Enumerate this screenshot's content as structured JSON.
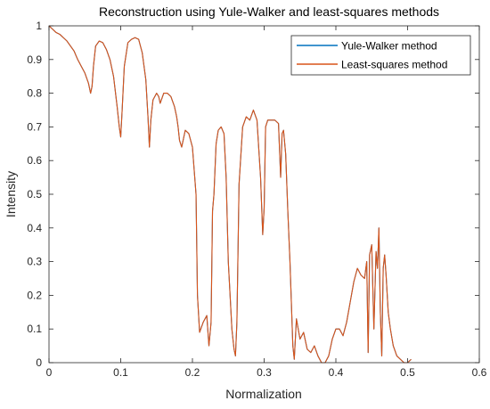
{
  "chart_data": {
    "type": "line",
    "title": "Reconstruction using Yule-Walker and least-squares methods",
    "xlabel": "Normalization",
    "ylabel": "Intensity",
    "xlim": [
      0,
      0.6
    ],
    "ylim": [
      0,
      1
    ],
    "xticks": [
      "0",
      "0.1",
      "0.2",
      "0.3",
      "0.4",
      "0.5",
      "0.6"
    ],
    "yticks": [
      "0",
      "0.1",
      "0.2",
      "0.3",
      "0.4",
      "0.5",
      "0.6",
      "0.7",
      "0.8",
      "0.9",
      "1"
    ],
    "grid": false,
    "legend_position": "top-right",
    "series": [
      {
        "name": "Yule-Walker method",
        "color": "#0072BD",
        "x": [
          0,
          0.005,
          0.01,
          0.015,
          0.02,
          0.025,
          0.03,
          0.035,
          0.04,
          0.045,
          0.05,
          0.055,
          0.058,
          0.06,
          0.062,
          0.065,
          0.07,
          0.075,
          0.08,
          0.085,
          0.09,
          0.095,
          0.098,
          0.1,
          0.102,
          0.105,
          0.11,
          0.115,
          0.12,
          0.125,
          0.13,
          0.135,
          0.138,
          0.14,
          0.142,
          0.145,
          0.15,
          0.153,
          0.155,
          0.16,
          0.165,
          0.17,
          0.175,
          0.178,
          0.18,
          0.182,
          0.185,
          0.19,
          0.195,
          0.2,
          0.205,
          0.207,
          0.21,
          0.215,
          0.22,
          0.223,
          0.226,
          0.228,
          0.23,
          0.233,
          0.236,
          0.24,
          0.244,
          0.247,
          0.25,
          0.255,
          0.258,
          0.26,
          0.262,
          0.265,
          0.27,
          0.275,
          0.28,
          0.285,
          0.29,
          0.295,
          0.298,
          0.3,
          0.302,
          0.305,
          0.31,
          0.315,
          0.32,
          0.323,
          0.325,
          0.327,
          0.33,
          0.333,
          0.336,
          0.34,
          0.342,
          0.345,
          0.35,
          0.355,
          0.36,
          0.365,
          0.37,
          0.375,
          0.38,
          0.385,
          0.39,
          0.395,
          0.4,
          0.405,
          0.41,
          0.415,
          0.42,
          0.425,
          0.43,
          0.435,
          0.44,
          0.443,
          0.445,
          0.447,
          0.45,
          0.453,
          0.456,
          0.458,
          0.46,
          0.462,
          0.464,
          0.466,
          0.468,
          0.47,
          0.473,
          0.476,
          0.48,
          0.485,
          0.49,
          0.495,
          0.5,
          0.505
        ],
        "values": [
          1.0,
          0.99,
          0.98,
          0.975,
          0.965,
          0.955,
          0.94,
          0.925,
          0.9,
          0.88,
          0.86,
          0.83,
          0.8,
          0.82,
          0.88,
          0.94,
          0.955,
          0.95,
          0.93,
          0.9,
          0.85,
          0.76,
          0.7,
          0.67,
          0.75,
          0.88,
          0.95,
          0.96,
          0.965,
          0.96,
          0.92,
          0.84,
          0.73,
          0.64,
          0.72,
          0.78,
          0.8,
          0.79,
          0.77,
          0.8,
          0.8,
          0.79,
          0.76,
          0.73,
          0.7,
          0.66,
          0.64,
          0.69,
          0.68,
          0.64,
          0.5,
          0.2,
          0.09,
          0.12,
          0.14,
          0.05,
          0.12,
          0.45,
          0.5,
          0.65,
          0.69,
          0.7,
          0.68,
          0.55,
          0.3,
          0.1,
          0.04,
          0.02,
          0.12,
          0.53,
          0.7,
          0.73,
          0.72,
          0.75,
          0.72,
          0.55,
          0.38,
          0.46,
          0.7,
          0.72,
          0.72,
          0.72,
          0.71,
          0.55,
          0.68,
          0.69,
          0.62,
          0.45,
          0.3,
          0.05,
          0.01,
          0.13,
          0.07,
          0.09,
          0.04,
          0.03,
          0.05,
          0.02,
          0.0,
          0.0,
          0.02,
          0.07,
          0.1,
          0.1,
          0.08,
          0.12,
          0.18,
          0.24,
          0.28,
          0.26,
          0.25,
          0.3,
          0.03,
          0.32,
          0.35,
          0.1,
          0.33,
          0.28,
          0.4,
          0.15,
          0.02,
          0.28,
          0.32,
          0.26,
          0.15,
          0.1,
          0.05,
          0.02,
          0.01,
          0.0,
          0.0,
          0.01
        ]
      },
      {
        "name": "Least-squares method",
        "color": "#D95319",
        "x": [
          0,
          0.005,
          0.01,
          0.015,
          0.02,
          0.025,
          0.03,
          0.035,
          0.04,
          0.045,
          0.05,
          0.055,
          0.058,
          0.06,
          0.062,
          0.065,
          0.07,
          0.075,
          0.08,
          0.085,
          0.09,
          0.095,
          0.098,
          0.1,
          0.102,
          0.105,
          0.11,
          0.115,
          0.12,
          0.125,
          0.13,
          0.135,
          0.138,
          0.14,
          0.142,
          0.145,
          0.15,
          0.153,
          0.155,
          0.16,
          0.165,
          0.17,
          0.175,
          0.178,
          0.18,
          0.182,
          0.185,
          0.19,
          0.195,
          0.2,
          0.205,
          0.207,
          0.21,
          0.215,
          0.22,
          0.223,
          0.226,
          0.228,
          0.23,
          0.233,
          0.236,
          0.24,
          0.244,
          0.247,
          0.25,
          0.255,
          0.258,
          0.26,
          0.262,
          0.265,
          0.27,
          0.275,
          0.28,
          0.285,
          0.29,
          0.295,
          0.298,
          0.3,
          0.302,
          0.305,
          0.31,
          0.315,
          0.32,
          0.323,
          0.325,
          0.327,
          0.33,
          0.333,
          0.336,
          0.34,
          0.342,
          0.345,
          0.35,
          0.355,
          0.36,
          0.365,
          0.37,
          0.375,
          0.38,
          0.385,
          0.39,
          0.395,
          0.4,
          0.405,
          0.41,
          0.415,
          0.42,
          0.425,
          0.43,
          0.435,
          0.44,
          0.443,
          0.445,
          0.447,
          0.45,
          0.453,
          0.456,
          0.458,
          0.46,
          0.462,
          0.464,
          0.466,
          0.468,
          0.47,
          0.473,
          0.476,
          0.48,
          0.485,
          0.49,
          0.495,
          0.5,
          0.505
        ],
        "values": [
          1.0,
          0.99,
          0.98,
          0.975,
          0.965,
          0.955,
          0.94,
          0.925,
          0.9,
          0.88,
          0.86,
          0.83,
          0.8,
          0.82,
          0.88,
          0.94,
          0.955,
          0.95,
          0.93,
          0.9,
          0.85,
          0.76,
          0.7,
          0.67,
          0.75,
          0.88,
          0.95,
          0.96,
          0.965,
          0.96,
          0.92,
          0.84,
          0.73,
          0.64,
          0.72,
          0.78,
          0.8,
          0.79,
          0.77,
          0.8,
          0.8,
          0.79,
          0.76,
          0.73,
          0.7,
          0.66,
          0.64,
          0.69,
          0.68,
          0.64,
          0.5,
          0.2,
          0.09,
          0.12,
          0.14,
          0.05,
          0.12,
          0.45,
          0.5,
          0.65,
          0.69,
          0.7,
          0.68,
          0.55,
          0.3,
          0.1,
          0.04,
          0.02,
          0.12,
          0.53,
          0.7,
          0.73,
          0.72,
          0.75,
          0.72,
          0.55,
          0.38,
          0.46,
          0.7,
          0.72,
          0.72,
          0.72,
          0.71,
          0.55,
          0.68,
          0.69,
          0.62,
          0.45,
          0.3,
          0.05,
          0.01,
          0.13,
          0.07,
          0.09,
          0.04,
          0.03,
          0.05,
          0.02,
          0.0,
          0.0,
          0.02,
          0.07,
          0.1,
          0.1,
          0.08,
          0.12,
          0.18,
          0.24,
          0.28,
          0.26,
          0.25,
          0.3,
          0.03,
          0.32,
          0.35,
          0.1,
          0.33,
          0.28,
          0.4,
          0.15,
          0.02,
          0.28,
          0.32,
          0.26,
          0.15,
          0.1,
          0.05,
          0.02,
          0.01,
          0.0,
          0.0,
          0.01
        ]
      }
    ]
  }
}
